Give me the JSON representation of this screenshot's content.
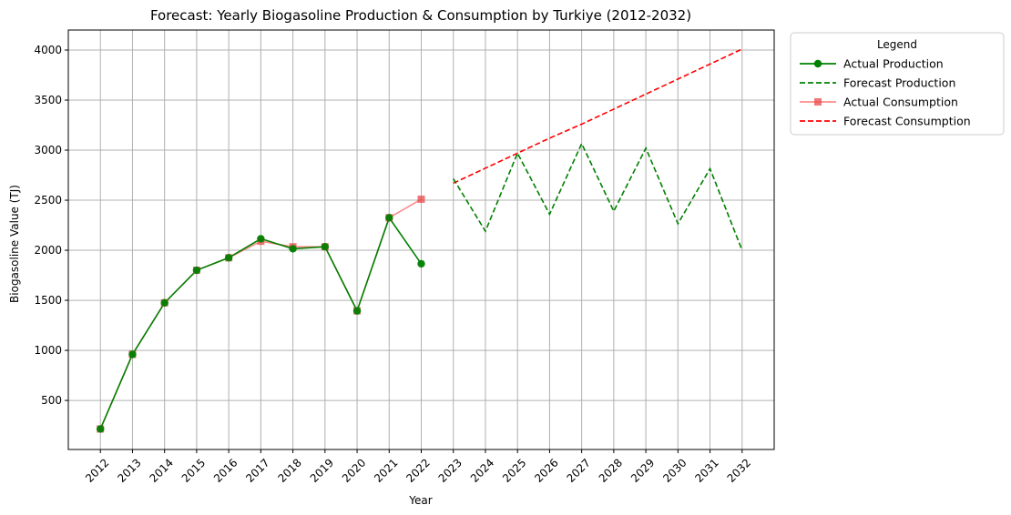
{
  "chart_data": {
    "type": "line",
    "title": "Forecast: Yearly Biogasoline Production & Consumption by Turkiye (2012-2032)",
    "xlabel": "Year",
    "ylabel": "Biogasoline Value (TJ)",
    "x_ticks": [
      "2012",
      "2013",
      "2014",
      "2015",
      "2016",
      "2017",
      "2018",
      "2019",
      "2020",
      "2021",
      "2022",
      "2023",
      "2024",
      "2025",
      "2026",
      "2027",
      "2028",
      "2029",
      "2030",
      "2031",
      "2032"
    ],
    "y_ticks": [
      500,
      1000,
      1500,
      2000,
      2500,
      3000,
      3500,
      4000
    ],
    "xlim": [
      2011,
      2033
    ],
    "ylim": [
      10,
      4200
    ],
    "grid": true,
    "legend": {
      "title": "Legend",
      "placement": "outside-top-right"
    },
    "series": [
      {
        "name": "Actual Production",
        "style": "solid",
        "marker": "circle",
        "color": "#008000",
        "x": [
          2012,
          2013,
          2014,
          2015,
          2016,
          2017,
          2018,
          2019,
          2020,
          2021,
          2022
        ],
        "y": [
          215,
          960,
          1475,
          1800,
          1925,
          2115,
          2015,
          2035,
          1395,
          2325,
          1865
        ]
      },
      {
        "name": "Forecast Production",
        "style": "dashed",
        "marker": "none",
        "color": "#008000",
        "x": [
          2023,
          2024,
          2025,
          2026,
          2027,
          2028,
          2029,
          2030,
          2031,
          2032
        ],
        "y": [
          2715,
          2190,
          2970,
          2360,
          3065,
          2390,
          3020,
          2265,
          2815,
          2000
        ]
      },
      {
        "name": "Actual Consumption",
        "style": "solid",
        "marker": "square",
        "color": "#ff6666",
        "x": [
          2012,
          2013,
          2014,
          2015,
          2016,
          2017,
          2018,
          2019,
          2020,
          2021,
          2022
        ],
        "y": [
          215,
          960,
          1475,
          1800,
          1925,
          2090,
          2035,
          2035,
          1395,
          2325,
          2510
        ]
      },
      {
        "name": "Forecast Consumption",
        "style": "dashed",
        "marker": "none",
        "color": "#ff0000",
        "x": [
          2023,
          2024,
          2025,
          2026,
          2027,
          2028,
          2029,
          2030,
          2031,
          2032
        ],
        "y": [
          2670,
          2820,
          2970,
          3120,
          3260,
          3410,
          3560,
          3710,
          3860,
          4010
        ]
      }
    ]
  }
}
